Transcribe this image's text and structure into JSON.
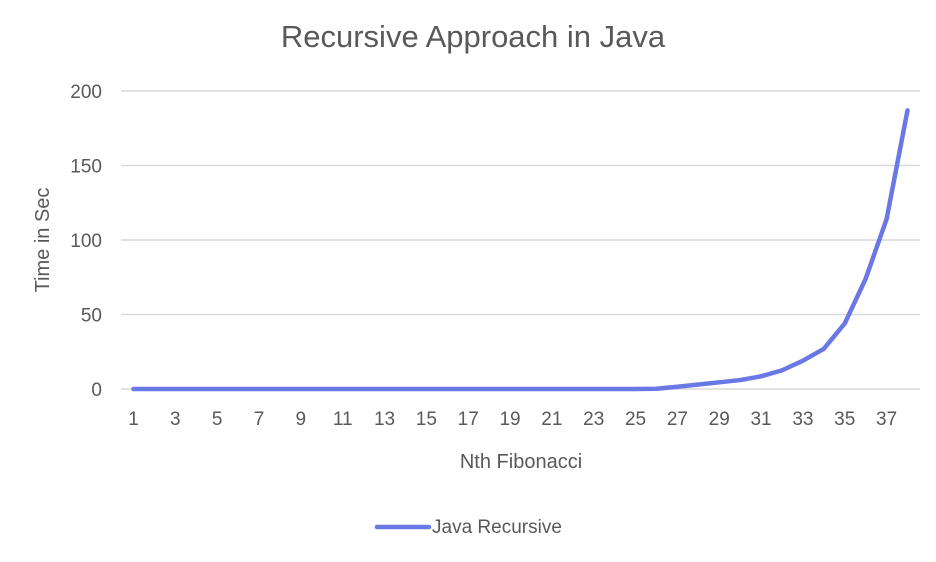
{
  "chart_data": {
    "type": "line",
    "title": "Recursive Approach in Java",
    "xlabel": "Nth Fibonacci",
    "ylabel": "Time in Sec",
    "x": [
      1,
      2,
      3,
      4,
      5,
      6,
      7,
      8,
      9,
      10,
      11,
      12,
      13,
      14,
      15,
      16,
      17,
      18,
      19,
      20,
      21,
      22,
      23,
      24,
      25,
      26,
      27,
      28,
      29,
      30,
      31,
      32,
      33,
      34,
      35,
      36,
      37,
      38
    ],
    "x_tick_labels": [
      "1",
      "3",
      "5",
      "7",
      "9",
      "11",
      "13",
      "15",
      "17",
      "19",
      "21",
      "23",
      "25",
      "27",
      "29",
      "31",
      "33",
      "35",
      "37"
    ],
    "ylim": [
      0,
      200
    ],
    "y_ticks": [
      0,
      50,
      100,
      150,
      200
    ],
    "grid": true,
    "legend_position": "bottom",
    "series": [
      {
        "name": "Java Recursive",
        "color": "#6a78e6",
        "values": [
          0,
          0,
          0,
          0,
          0,
          0,
          0,
          0,
          0,
          0,
          0,
          0,
          0,
          0,
          0,
          0,
          0,
          0,
          0,
          0,
          0,
          0,
          0,
          0,
          0,
          0.2,
          1.5,
          3,
          4.5,
          6,
          8.5,
          12.5,
          19,
          27,
          44,
          74,
          114,
          187
        ]
      }
    ]
  }
}
